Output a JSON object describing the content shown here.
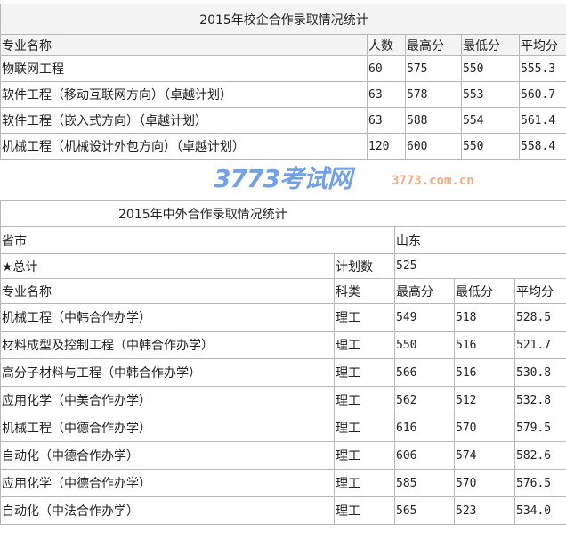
{
  "table1": {
    "title": "2015年校企合作录取情况统计",
    "headers": [
      "专业名称",
      "人数",
      "最高分",
      "最低分",
      "平均分"
    ],
    "rows": [
      [
        "物联网工程",
        "60",
        "575",
        "550",
        "555.3"
      ],
      [
        "软件工程（移动互联网方向）（卓越计划）",
        "63",
        "578",
        "553",
        "560.7"
      ],
      [
        "软件工程（嵌入式方向）（卓越计划）",
        "63",
        "588",
        "554",
        "561.4"
      ],
      [
        "机械工程（机械设计外包方向）（卓越计划）",
        "120",
        "600",
        "550",
        "558.4"
      ]
    ]
  },
  "table2": {
    "title": "2015年中外合作录取情况统计",
    "province_label": "省市",
    "province_value": "山东",
    "total_label": "★总计",
    "plan_label": "计划数",
    "plan_value": "525",
    "headers": [
      "专业名称",
      "科类",
      "最高分",
      "最低分",
      "平均分"
    ],
    "rows": [
      [
        "机械工程（中韩合作办学）",
        "理工",
        "549",
        "518",
        "528.5"
      ],
      [
        "材料成型及控制工程（中韩合作办学）",
        "理工",
        "550",
        "516",
        "521.7"
      ],
      [
        "高分子材料与工程（中韩合作办学）",
        "理工",
        "566",
        "516",
        "530.8"
      ],
      [
        "应用化学（中美合作办学）",
        "理工",
        "562",
        "512",
        "532.8"
      ],
      [
        "机械工程（中德合作办学）",
        "理工",
        "616",
        "570",
        "579.5"
      ],
      [
        "自动化（中德合作办学）",
        "理工",
        "606",
        "574",
        "582.6"
      ],
      [
        "应用化学（中德合作办学）",
        "理工",
        "585",
        "570",
        "576.5"
      ],
      [
        "自动化（中法合作办学）",
        "理工",
        "565",
        "523",
        "534.0"
      ]
    ]
  },
  "watermark": {
    "main": "3773考试网",
    "sub": "3773.com.cn"
  }
}
